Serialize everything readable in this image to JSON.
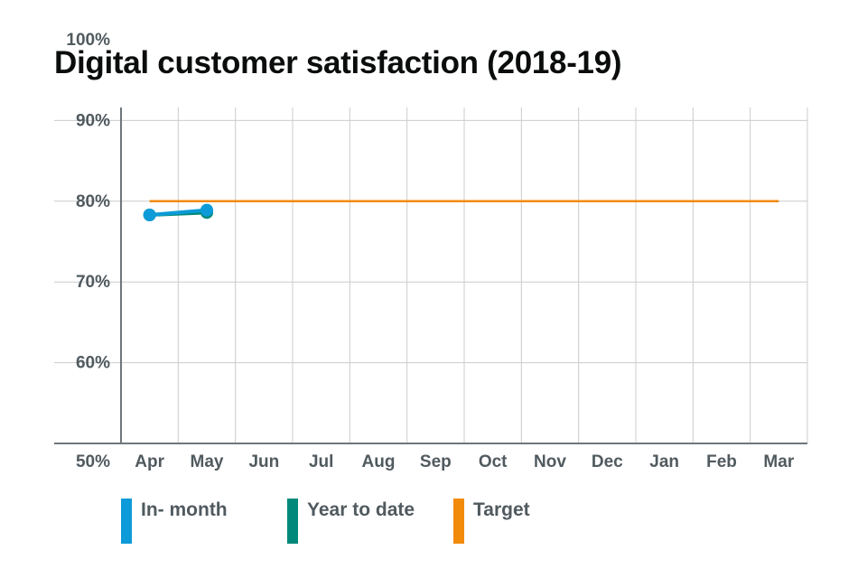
{
  "chart_data": {
    "type": "line",
    "title": "Digital customer satisfaction (2018-19)",
    "categories": [
      "Apr",
      "May",
      "Jun",
      "Jul",
      "Aug",
      "Sep",
      "Oct",
      "Nov",
      "Dec",
      "Jan",
      "Feb",
      "Mar"
    ],
    "y_tick_labels": [
      "50%",
      "60%",
      "70%",
      "80%",
      "90%",
      "100%"
    ],
    "ylim": [
      50,
      100
    ],
    "grid": true,
    "legend_position": "bottom",
    "series": [
      {
        "name": "In- month",
        "color": "#0c9bd8",
        "values": [
          78.3,
          78.9,
          null,
          null,
          null,
          null,
          null,
          null,
          null,
          null,
          null,
          null
        ]
      },
      {
        "name": "Year to date",
        "color": "#00897b",
        "values": [
          78.3,
          78.6,
          null,
          null,
          null,
          null,
          null,
          null,
          null,
          null,
          null,
          null
        ]
      },
      {
        "name": "Target",
        "color": "#f28a0c",
        "values": [
          80,
          80,
          80,
          80,
          80,
          80,
          80,
          80,
          80,
          80,
          80,
          80
        ]
      }
    ]
  }
}
